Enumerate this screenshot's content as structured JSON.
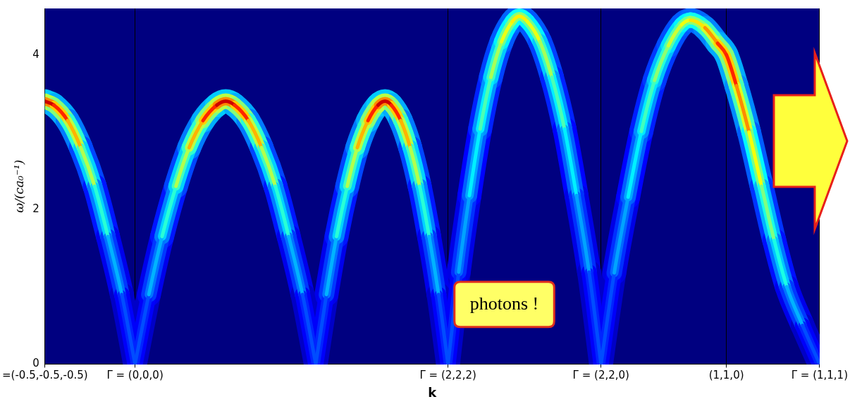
{
  "chart_data": {
    "type": "line",
    "x_label": "k",
    "y_label": "ω/(ca₀⁻¹)",
    "annotation": "photons !",
    "xlim": [
      0,
      12.3
    ],
    "xticks": [
      {
        "value": 0,
        "label": "=(-0.5,-0.5,-0.5)"
      },
      {
        "value": 1.43,
        "label": "Γ = (0,0,0)"
      },
      {
        "value": 6.4,
        "label": "Γ = (2,2,2)"
      },
      {
        "value": 8.83,
        "label": "Γ = (2,2,0)"
      },
      {
        "value": 10.82,
        "label": "(1,1,0)"
      },
      {
        "value": 12.3,
        "label": "Γ = (1,1,1)"
      }
    ],
    "ylim": [
      0,
      4.6
    ],
    "yticks": [
      0,
      2,
      4
    ],
    "grid": "x",
    "intensity_range": [
      0,
      1
    ],
    "series": [
      {
        "x": [
          0,
          0.14,
          0.36,
          0.57,
          0.79,
          1.0,
          1.22,
          1.43
        ],
        "values": [
          3.4,
          3.35,
          3.15,
          2.8,
          2.3,
          1.65,
          0.9,
          0
        ],
        "intensity": [
          0.95,
          0.9,
          0.78,
          0.62,
          0.48,
          0.35,
          0.25,
          0.15
        ]
      },
      {
        "x": [
          1.43,
          1.65,
          1.86,
          2.08,
          2.29,
          2.51,
          2.73,
          2.87,
          3.01,
          3.23,
          3.44,
          3.66,
          3.87,
          4.09,
          4.3
        ],
        "values": [
          0,
          0.9,
          1.65,
          2.3,
          2.8,
          3.15,
          3.35,
          3.4,
          3.35,
          3.15,
          2.8,
          2.3,
          1.65,
          0.9,
          0
        ],
        "intensity": [
          0.15,
          0.25,
          0.35,
          0.48,
          0.62,
          0.78,
          0.9,
          0.95,
          0.9,
          0.78,
          0.62,
          0.48,
          0.35,
          0.25,
          0.15
        ]
      },
      {
        "x": [
          4.3,
          4.47,
          4.63,
          4.8,
          4.96,
          5.13,
          5.29,
          5.4,
          5.5,
          5.65,
          5.8,
          5.95,
          6.1,
          6.25,
          6.4
        ],
        "values": [
          0,
          0.9,
          1.65,
          2.3,
          2.8,
          3.15,
          3.35,
          3.4,
          3.35,
          3.15,
          2.8,
          2.3,
          1.65,
          0.9,
          0
        ],
        "intensity": [
          0.15,
          0.25,
          0.35,
          0.48,
          0.62,
          0.78,
          0.9,
          0.95,
          0.9,
          0.78,
          0.62,
          0.48,
          0.35,
          0.25,
          0.15
        ]
      },
      {
        "x": [
          6.4,
          6.57,
          6.74,
          6.91,
          7.08,
          7.25,
          7.42,
          7.53,
          7.66,
          7.86,
          8.05,
          8.25,
          8.44,
          8.64,
          8.83
        ],
        "values": [
          0,
          1.19,
          2.18,
          3.04,
          3.71,
          4.17,
          4.43,
          4.5,
          4.43,
          4.17,
          3.71,
          3.04,
          2.18,
          1.19,
          0
        ],
        "intensity": [
          0.15,
          0.25,
          0.32,
          0.4,
          0.5,
          0.58,
          0.63,
          0.65,
          0.63,
          0.58,
          0.5,
          0.4,
          0.32,
          0.25,
          0.15
        ]
      },
      {
        "x": [
          8.83,
          9.04,
          9.26,
          9.47,
          9.68,
          9.9,
          10.11,
          10.25,
          10.48,
          10.68,
          10.82,
          10.98,
          11.18,
          11.38,
          11.58,
          11.78,
          12.03,
          12.3
        ],
        "values": [
          0,
          1.18,
          2.16,
          3.01,
          3.67,
          4.12,
          4.39,
          4.45,
          4.35,
          4.15,
          4.0,
          3.6,
          3.0,
          2.3,
          1.6,
          1.0,
          0.5,
          0
        ],
        "intensity": [
          0.15,
          0.25,
          0.32,
          0.4,
          0.48,
          0.55,
          0.6,
          0.62,
          0.68,
          0.78,
          0.88,
          0.8,
          0.68,
          0.55,
          0.45,
          0.35,
          0.25,
          0.15
        ]
      }
    ]
  }
}
